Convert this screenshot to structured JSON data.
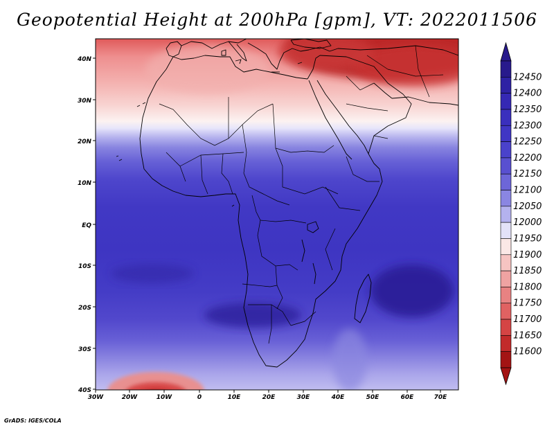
{
  "title": "Geopotential Height at 200hPa [gpm], VT: 2022011506",
  "credit": "GrADS: IGES/COLA",
  "map": {
    "variable": "Geopotential Height",
    "level": "200hPa",
    "units": "gpm",
    "valid_time": "2022011506",
    "lat_labels": [
      "40N",
      "30N",
      "20N",
      "10N",
      "EQ",
      "10S",
      "20S",
      "30S",
      "40S"
    ],
    "lon_labels": [
      "30W",
      "20W",
      "10W",
      "0",
      "10E",
      "20E",
      "30E",
      "40E",
      "50E",
      "60E",
      "70E"
    ]
  },
  "colorbar": {
    "levels": [
      12450,
      12400,
      12350,
      12300,
      12250,
      12200,
      12150,
      12100,
      12050,
      12000,
      11950,
      11900,
      11850,
      11800,
      11750,
      11700,
      11650,
      11600
    ],
    "colors": [
      "#281a8c",
      "#2e22a4",
      "#3528b4",
      "#3a2fbd",
      "#4036c4",
      "#4a42cb",
      "#5950d0",
      "#6d66d8",
      "#8a86e2",
      "#b4b2ee",
      "#e3e2f8",
      "#fbe8e6",
      "#f6c4c2",
      "#efa3a2",
      "#e88282",
      "#e06262",
      "#d54444",
      "#c22a2a",
      "#a31414"
    ]
  }
}
